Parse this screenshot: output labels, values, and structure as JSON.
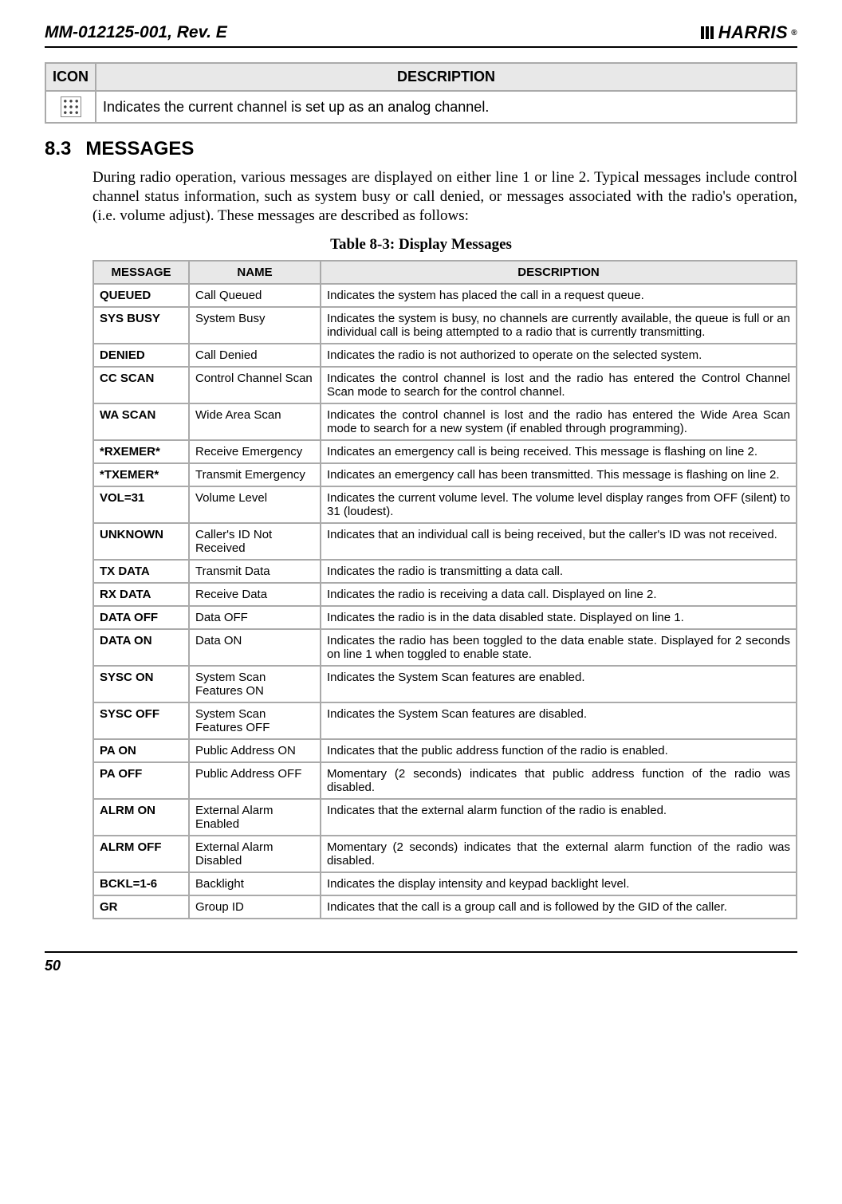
{
  "header": {
    "doc_id": "MM-012125-001, Rev. E",
    "logo_text": "HARRIS",
    "reg": "®"
  },
  "icon_table": {
    "columns": [
      "ICON",
      "DESCRIPTION"
    ],
    "row": {
      "icon_name": "analog-channel-icon",
      "description": "Indicates the current channel is set up as an analog channel."
    }
  },
  "section": {
    "number": "8.3",
    "title": "MESSAGES",
    "paragraph": "During radio operation, various messages are displayed on either line 1 or line 2. Typical messages include control channel status information, such as system busy or call denied, or messages associated with the radio's operation, (i.e. volume adjust). These messages are described as follows:"
  },
  "table_caption": "Table 8-3: Display Messages",
  "msg_table": {
    "columns": [
      "MESSAGE",
      "NAME",
      "DESCRIPTION"
    ],
    "rows": [
      {
        "msg": "QUEUED",
        "name": "Call Queued",
        "desc": "Indicates the system has placed the call in a request queue."
      },
      {
        "msg": "SYS BUSY",
        "name": "System Busy",
        "desc": "Indicates the system is busy, no channels are currently available, the queue is full or an individual call is being attempted to a radio that is currently transmitting."
      },
      {
        "msg": "DENIED",
        "name": "Call Denied",
        "desc": "Indicates the radio is not authorized to operate on the selected system."
      },
      {
        "msg": "CC SCAN",
        "name": "Control Channel Scan",
        "desc": "Indicates the control channel is lost and the radio has entered the Control Channel Scan mode to search for the control channel."
      },
      {
        "msg": "WA SCAN",
        "name": "Wide Area Scan",
        "desc": "Indicates the control channel is lost and the radio has entered the Wide Area Scan mode to search for a new system (if enabled through programming)."
      },
      {
        "msg": "*RXEMER*",
        "name": "Receive Emergency",
        "desc": "Indicates an emergency call is being received. This message is flashing on line 2."
      },
      {
        "msg": "*TXEMER*",
        "name": "Transmit Emergency",
        "desc": "Indicates an emergency call has been transmitted. This message is flashing on line 2."
      },
      {
        "msg": "VOL=31",
        "name": "Volume Level",
        "desc": "Indicates the current volume level. The volume level display ranges from OFF (silent) to 31 (loudest)."
      },
      {
        "msg": "UNKNOWN",
        "name": "Caller's ID Not Received",
        "desc": "Indicates that an individual call is being received, but the caller's ID was not received."
      },
      {
        "msg": "TX DATA",
        "name": "Transmit Data",
        "desc": "Indicates the radio is transmitting a data call."
      },
      {
        "msg": "RX DATA",
        "name": "Receive Data",
        "desc": "Indicates the radio is receiving a data call. Displayed on line 2."
      },
      {
        "msg": "DATA OFF",
        "name": "Data OFF",
        "desc": "Indicates the radio is in the data disabled state. Displayed on line 1."
      },
      {
        "msg": "DATA ON",
        "name": "Data ON",
        "desc": "Indicates the radio has been toggled to the data enable state. Displayed for 2 seconds on line 1 when toggled to enable state."
      },
      {
        "msg": "SYSC ON",
        "name": "System Scan Features ON",
        "desc": "Indicates the System Scan features are enabled."
      },
      {
        "msg": "SYSC OFF",
        "name": "System Scan Features OFF",
        "desc": "Indicates the System Scan features are disabled."
      },
      {
        "msg": "PA ON",
        "name": "Public Address ON",
        "desc": "Indicates that the public address function of the radio is enabled."
      },
      {
        "msg": "PA OFF",
        "name": "Public Address OFF",
        "desc": "Momentary (2 seconds) indicates that public address function of the radio was disabled."
      },
      {
        "msg": "ALRM ON",
        "name": "External Alarm Enabled",
        "desc": "Indicates that the external alarm function of the radio is enabled."
      },
      {
        "msg": "ALRM OFF",
        "name": "External Alarm Disabled",
        "desc": "Momentary (2 seconds) indicates that the external alarm function of the radio was disabled."
      },
      {
        "msg": "BCKL=1-6",
        "name": "Backlight",
        "desc": "Indicates the display intensity and keypad backlight level."
      },
      {
        "msg": "GR",
        "name": "Group ID",
        "desc": "Indicates that the call is a group call and is followed by the GID of the caller."
      }
    ]
  },
  "page_number": "50",
  "colors": {
    "header_bg": "#e8e8e8",
    "border": "#aaaaaa",
    "rule": "#000000"
  }
}
